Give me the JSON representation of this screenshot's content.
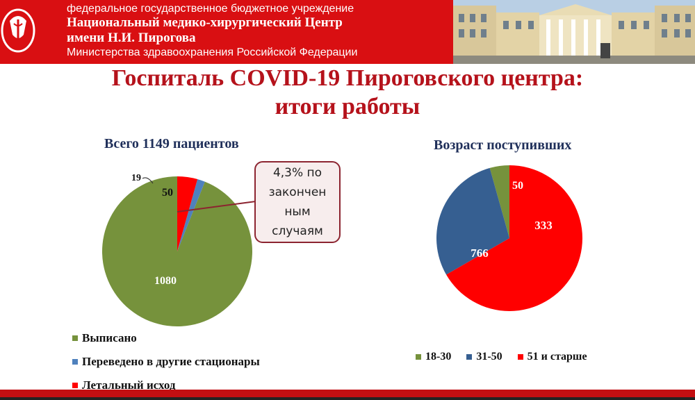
{
  "header": {
    "org_line1": "федеральное государственное бюджетное учреждение",
    "org_line2": "Национальный медико-хирургический Центр",
    "org_line3": "имени Н.И. Пирогова",
    "org_line4": "Министерства здравоохранения Российской Федерации"
  },
  "title_line1": "Госпиталь COVID-19 Пироговского центра:",
  "title_line2": "итоги работы",
  "callout": "4,3% по закончен ным случаям",
  "colors": {
    "green": "#76923c",
    "blue": "#4f81bd",
    "red": "#ff0000",
    "navy": "#365f91",
    "header_red": "#d90f12",
    "title_red": "#b5121b"
  },
  "chart_data": [
    {
      "type": "pie",
      "title": "Всего 1149 пациентов",
      "categories": [
        "Выписано",
        "Переведено в другие стационары",
        "Летальный исход"
      ],
      "values": [
        1080,
        19,
        50
      ],
      "data_labels": [
        "1080",
        "19",
        "50"
      ],
      "colors": [
        "#76923c",
        "#4f81bd",
        "#ff0000"
      ],
      "legend": "bottom-left"
    },
    {
      "type": "pie",
      "title": "Возраст поступивших",
      "categories": [
        "18-30",
        "31-50",
        "51 и старше"
      ],
      "values": [
        50,
        333,
        766
      ],
      "data_labels": [
        "50",
        "333",
        "766"
      ],
      "colors": [
        "#76923c",
        "#365f91",
        "#ff0000"
      ],
      "legend": "bottom"
    }
  ]
}
